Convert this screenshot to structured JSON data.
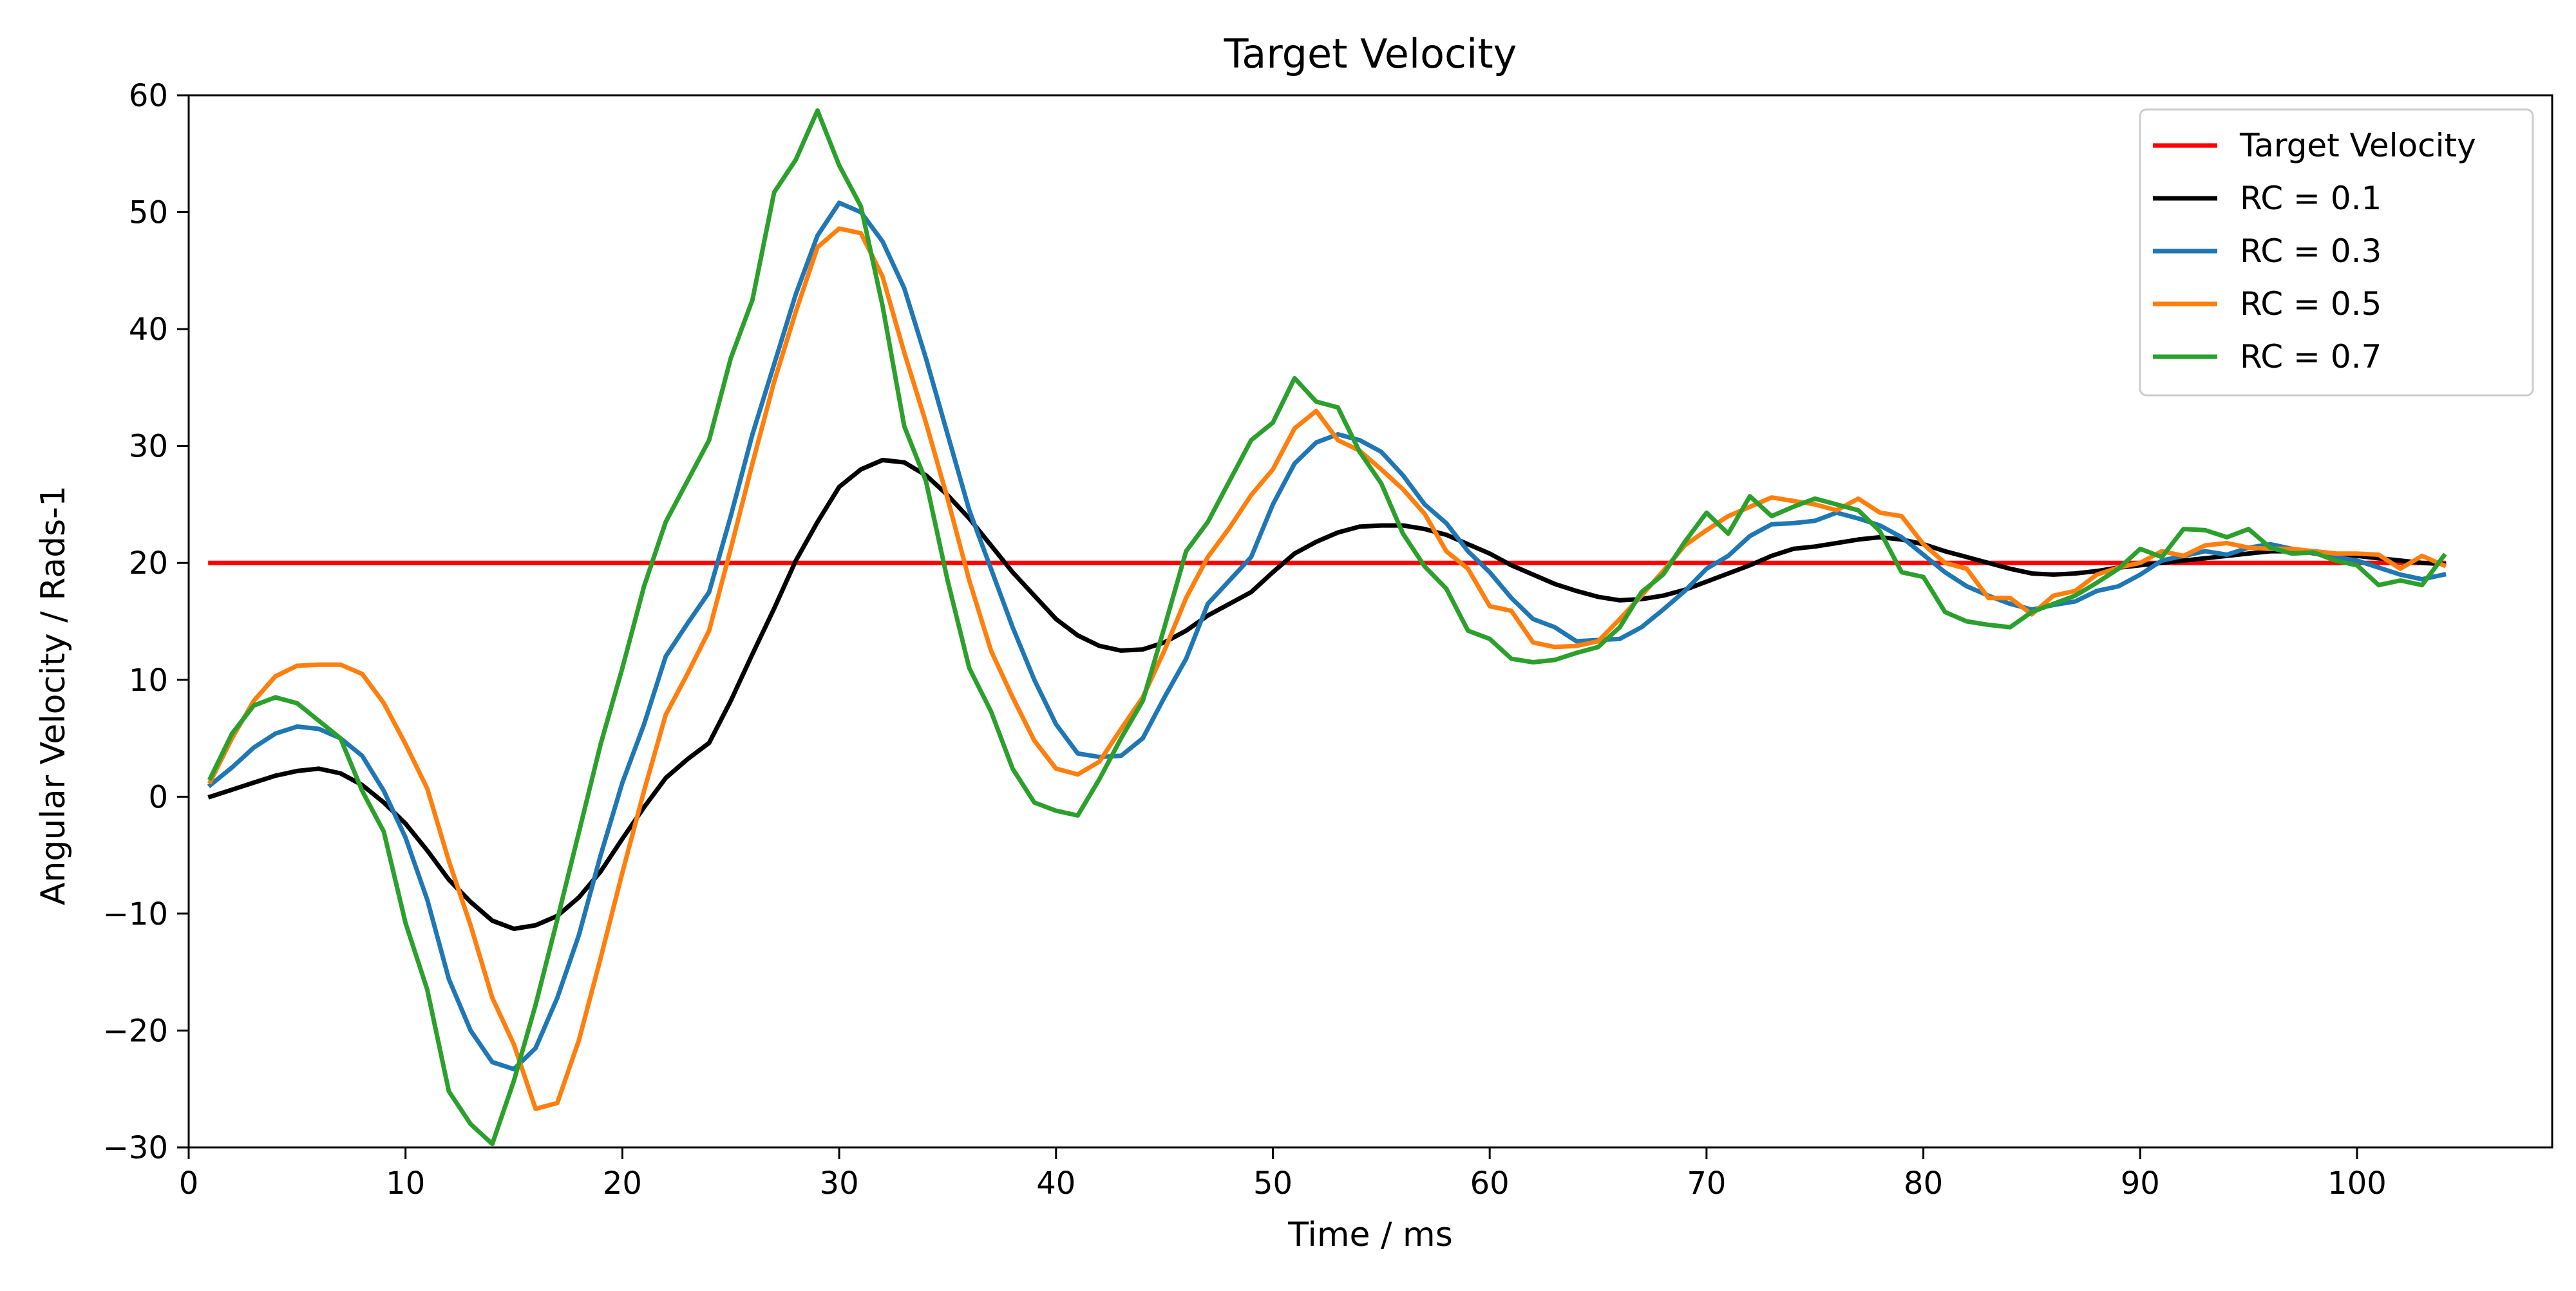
{
  "chart_data": {
    "type": "line",
    "title": "Target Velocity",
    "xlabel": "Time / ms",
    "ylabel": "Angular Velocity / Rads-1",
    "xlim": [
      0,
      109
    ],
    "ylim": [
      -30,
      60
    ],
    "x_ticks": [
      0,
      10,
      20,
      30,
      40,
      50,
      60,
      70,
      80,
      90,
      100
    ],
    "y_ticks": [
      -30,
      -20,
      -10,
      0,
      10,
      20,
      30,
      40,
      50,
      60
    ],
    "x_tick_labels": [
      "0",
      "10",
      "20",
      "30",
      "40",
      "50",
      "60",
      "70",
      "80",
      "90",
      "100"
    ],
    "y_tick_labels": [
      "−30",
      "−20",
      "−10",
      "0",
      "10",
      "20",
      "30",
      "40",
      "50",
      "60"
    ],
    "grid": false,
    "legend_position": "top-right",
    "x": [
      1,
      2,
      3,
      4,
      5,
      6,
      7,
      8,
      9,
      10,
      11,
      12,
      13,
      14,
      15,
      16,
      17,
      18,
      19,
      20,
      21,
      22,
      23,
      24,
      25,
      26,
      27,
      28,
      29,
      30,
      31,
      32,
      33,
      34,
      35,
      36,
      37,
      38,
      39,
      40,
      41,
      42,
      43,
      44,
      45,
      46,
      47,
      48,
      49,
      50,
      51,
      52,
      53,
      54,
      55,
      56,
      57,
      58,
      59,
      60,
      61,
      62,
      63,
      64,
      65,
      66,
      67,
      68,
      69,
      70,
      71,
      72,
      73,
      74,
      75,
      76,
      77,
      78,
      79,
      80,
      81,
      82,
      83,
      84,
      85,
      86,
      87,
      88,
      89,
      90,
      91,
      92,
      93,
      94,
      95,
      96,
      97,
      98,
      99,
      100,
      101,
      102,
      103,
      104
    ],
    "series": [
      {
        "name": "Target Velocity",
        "color": "#ff0000",
        "values": [
          20,
          20,
          20,
          20,
          20,
          20,
          20,
          20,
          20,
          20,
          20,
          20,
          20,
          20,
          20,
          20,
          20,
          20,
          20,
          20,
          20,
          20,
          20,
          20,
          20,
          20,
          20,
          20,
          20,
          20,
          20,
          20,
          20,
          20,
          20,
          20,
          20,
          20,
          20,
          20,
          20,
          20,
          20,
          20,
          20,
          20,
          20,
          20,
          20,
          20,
          20,
          20,
          20,
          20,
          20,
          20,
          20,
          20,
          20,
          20,
          20,
          20,
          20,
          20,
          20,
          20,
          20,
          20,
          20,
          20,
          20,
          20,
          20,
          20,
          20,
          20,
          20,
          20,
          20,
          20,
          20,
          20,
          20,
          20,
          20,
          20,
          20,
          20,
          20,
          20,
          20,
          20,
          20,
          20,
          20,
          20,
          20,
          20,
          20,
          20,
          20,
          20,
          20,
          20
        ]
      },
      {
        "name": "RC = 0.1",
        "color": "#000000",
        "values": [
          0,
          0.6,
          1.2,
          1.8,
          2.2,
          2.4,
          2.0,
          1.0,
          -0.5,
          -2.3,
          -4.6,
          -7.1,
          -9.0,
          -10.6,
          -11.3,
          -11.0,
          -10.2,
          -8.6,
          -6.4,
          -3.6,
          -0.9,
          1.6,
          3.2,
          4.6,
          8.2,
          12.2,
          16.1,
          20.2,
          23.5,
          26.5,
          28.0,
          28.8,
          28.6,
          27.5,
          25.8,
          23.8,
          21.5,
          19.2,
          17.2,
          15.2,
          13.8,
          12.9,
          12.5,
          12.6,
          13.2,
          14.2,
          15.5,
          16.5,
          17.5,
          19.2,
          20.8,
          21.8,
          22.6,
          23.1,
          23.2,
          23.2,
          22.9,
          22.4,
          21.6,
          20.8,
          19.8,
          19.0,
          18.2,
          17.6,
          17.1,
          16.8,
          16.9,
          17.2,
          17.7,
          18.4,
          19.1,
          19.8,
          20.6,
          21.2,
          21.4,
          21.7,
          22.0,
          22.2,
          22.0,
          21.6,
          21.0,
          20.5,
          20.0,
          19.5,
          19.1,
          19.0,
          19.1,
          19.3,
          19.6,
          19.8,
          20.0,
          20.2,
          20.4,
          20.6,
          20.8,
          21.0,
          21.0,
          21.0,
          20.8,
          20.6,
          20.4,
          20.2,
          20.0,
          19.9
        ]
      },
      {
        "name": "RC = 0.3",
        "color": "#1f77b4",
        "values": [
          1.0,
          2.5,
          4.2,
          5.4,
          6.0,
          5.8,
          5.0,
          3.5,
          0.5,
          -3.5,
          -8.8,
          -15.6,
          -20.0,
          -22.7,
          -23.3,
          -21.5,
          -17.2,
          -11.8,
          -5.0,
          1.2,
          6.2,
          12.0,
          14.8,
          17.5,
          24.0,
          31.0,
          37.0,
          43.0,
          48.0,
          50.8,
          50.0,
          47.5,
          43.5,
          37.5,
          31.0,
          24.5,
          19.5,
          14.5,
          10.0,
          6.2,
          3.7,
          3.4,
          3.5,
          5.0,
          8.5,
          11.8,
          16.5,
          18.5,
          20.5,
          25.0,
          28.5,
          30.3,
          31.0,
          30.5,
          29.5,
          27.5,
          25.0,
          23.4,
          21.0,
          19.2,
          17.0,
          15.2,
          14.5,
          13.3,
          13.4,
          13.5,
          14.5,
          16.0,
          17.6,
          19.5,
          20.6,
          22.3,
          23.3,
          23.4,
          23.6,
          24.3,
          23.8,
          23.2,
          22.2,
          20.7,
          19.2,
          18.0,
          17.2,
          16.5,
          16.0,
          16.4,
          16.7,
          17.6,
          18.0,
          19.0,
          20.2,
          20.6,
          21.0,
          20.7,
          21.3,
          21.6,
          21.2,
          20.8,
          20.5,
          20.2,
          19.6,
          19.0,
          18.6,
          19.0
        ]
      },
      {
        "name": "RC = 0.5",
        "color": "#ff7f0e",
        "values": [
          1.3,
          5.0,
          8.2,
          10.3,
          11.2,
          11.3,
          11.3,
          10.5,
          8.0,
          4.5,
          0.7,
          -5.5,
          -11.0,
          -17.2,
          -21.2,
          -26.7,
          -26.2,
          -20.8,
          -13.8,
          -6.5,
          0.5,
          7.0,
          10.5,
          14.2,
          21.2,
          28.5,
          35.5,
          41.5,
          47.0,
          48.6,
          48.2,
          44.5,
          38.0,
          32.0,
          25.5,
          18.5,
          12.5,
          8.5,
          4.8,
          2.4,
          1.9,
          3.0,
          5.8,
          8.5,
          12.5,
          17.0,
          20.5,
          23.0,
          25.8,
          28.0,
          31.5,
          33.0,
          30.5,
          29.6,
          28.0,
          26.3,
          24.2,
          21.0,
          19.5,
          16.3,
          15.9,
          13.2,
          12.8,
          12.9,
          13.3,
          15.2,
          17.2,
          19.3,
          21.5,
          22.8,
          24.0,
          24.8,
          25.6,
          25.3,
          25.0,
          24.5,
          25.5,
          24.3,
          24.0,
          21.6,
          20.0,
          19.5,
          17.0,
          17.0,
          15.6,
          17.2,
          17.6,
          19.0,
          19.6,
          20.0,
          21.0,
          20.6,
          21.5,
          21.7,
          21.3,
          21.2,
          21.2,
          21.0,
          20.8,
          20.8,
          20.7,
          19.5,
          20.6,
          19.8
        ]
      },
      {
        "name": "RC = 0.7",
        "color": "#2ca02c",
        "values": [
          1.6,
          5.4,
          7.8,
          8.5,
          8.0,
          6.5,
          5.0,
          0.5,
          -3.0,
          -10.8,
          -16.5,
          -25.2,
          -28.0,
          -29.7,
          -24.3,
          -17.8,
          -10.5,
          -3.0,
          4.5,
          11.0,
          18.0,
          23.5,
          27.0,
          30.5,
          37.5,
          42.5,
          51.7,
          54.5,
          58.7,
          54.0,
          50.5,
          42.0,
          31.7,
          27.0,
          18.5,
          11.0,
          7.3,
          2.4,
          -0.5,
          -1.2,
          -1.6,
          1.5,
          5.0,
          8.2,
          14.5,
          21.0,
          23.5,
          27.0,
          30.5,
          32.0,
          35.8,
          33.8,
          33.3,
          29.5,
          26.8,
          22.5,
          19.7,
          17.8,
          14.2,
          13.5,
          11.8,
          11.5,
          11.7,
          12.3,
          12.8,
          14.5,
          17.5,
          19.0,
          21.8,
          24.3,
          22.5,
          25.7,
          24.0,
          24.8,
          25.5,
          25.0,
          24.5,
          22.7,
          19.2,
          18.8,
          15.8,
          15.0,
          14.7,
          14.5,
          15.8,
          16.5,
          17.2,
          18.3,
          19.5,
          21.2,
          20.5,
          22.9,
          22.8,
          22.2,
          22.9,
          21.3,
          20.8,
          20.9,
          20.2,
          19.8,
          18.1,
          18.5,
          18.1,
          20.6
        ]
      }
    ]
  }
}
